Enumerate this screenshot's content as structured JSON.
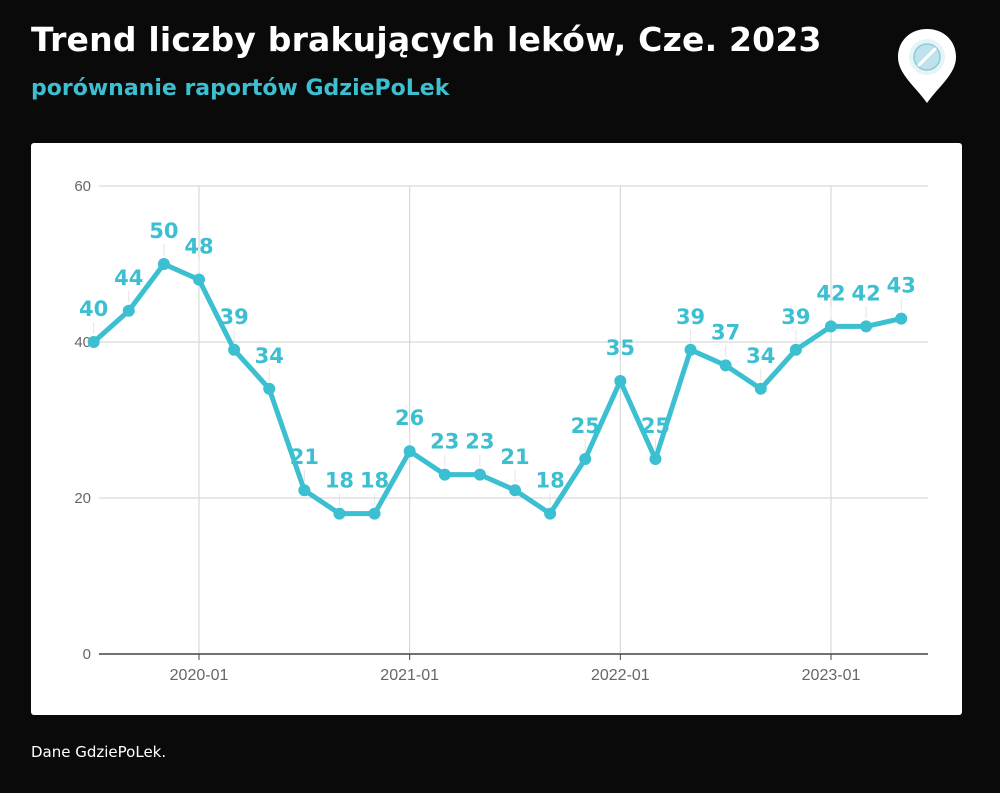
{
  "header": {
    "title": "Trend liczby brakujących leków, Cze. 2023",
    "subtitle": "porównanie raportów GdziePoLek"
  },
  "logo": {
    "icon": "pill-location-pin-icon"
  },
  "footer": {
    "source": "Dane GdziePoLek."
  },
  "colors": {
    "background": "#0a0a0a",
    "line": "#3bbfd1",
    "grid": "#d0d0d0",
    "tick_text": "#666666"
  },
  "chart_data": {
    "type": "line",
    "title": "Trend liczby brakujących leków, Cze. 2023",
    "subtitle": "porównanie raportów GdziePoLek",
    "xlabel": "",
    "ylabel": "",
    "ylim": [
      0,
      60
    ],
    "y_ticks": [
      "0",
      "20",
      "40",
      "60"
    ],
    "x_ticks": [
      "2020-01",
      "2021-01",
      "2022-01",
      "2023-01"
    ],
    "grid": true,
    "legend": "none",
    "data_labels": true,
    "series": [
      {
        "x": [
          "2019-07",
          "2019-09",
          "2019-11",
          "2020-01",
          "2020-03",
          "2020-05",
          "2020-07",
          "2020-09",
          "2020-11",
          "2021-01",
          "2021-03",
          "2021-05",
          "2021-07",
          "2021-09",
          "2021-11",
          "2022-01",
          "2022-03",
          "2022-05",
          "2022-07",
          "2022-09",
          "2022-11",
          "2023-01",
          "2023-03",
          "2023-05"
        ],
        "values": [
          40,
          44,
          50,
          48,
          39,
          34,
          21,
          18,
          18,
          26,
          23,
          23,
          21,
          18,
          25,
          35,
          25,
          39,
          37,
          34,
          39,
          42,
          42,
          43
        ]
      }
    ]
  }
}
